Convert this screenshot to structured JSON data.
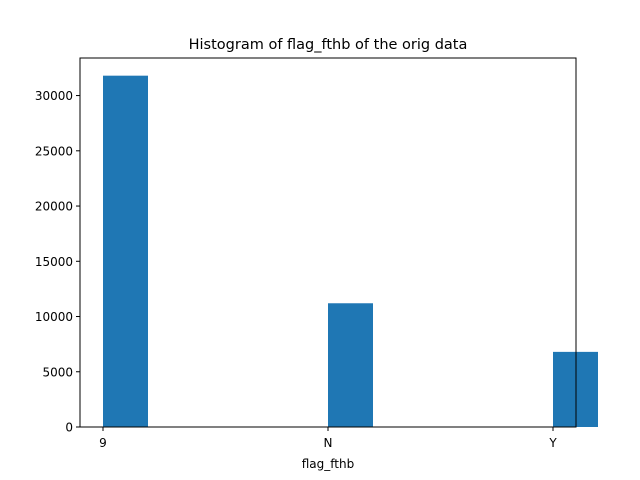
{
  "chart_data": {
    "type": "bar",
    "title": "Histogram of flag_fthb of the orig data",
    "xlabel": "flag_fthb",
    "ylabel": "",
    "categories": [
      "9",
      "N",
      "Y"
    ],
    "values": [
      31800,
      11200,
      6800
    ],
    "ylim": [
      0,
      33400
    ],
    "yticks": [
      0,
      5000,
      10000,
      15000,
      20000,
      25000,
      30000
    ],
    "ytick_labels": [
      "0",
      "5000",
      "10000",
      "15000",
      "20000",
      "25000",
      "30000"
    ],
    "grid": false,
    "legend": "none",
    "bar_color": "#1f77b4"
  }
}
